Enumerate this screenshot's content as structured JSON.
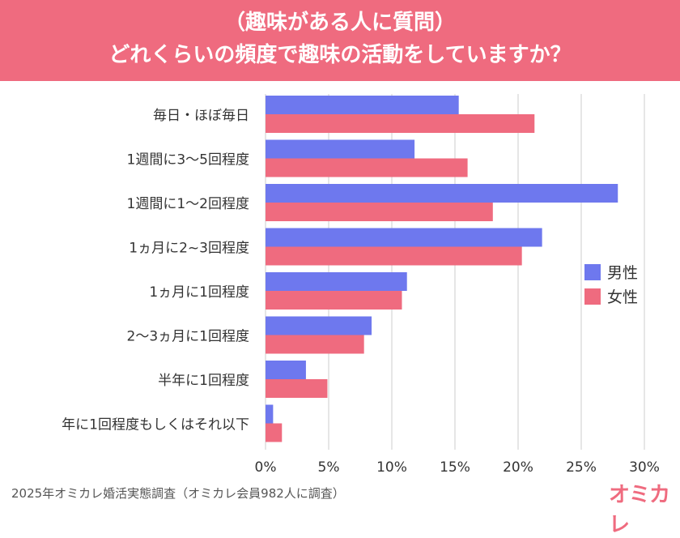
{
  "header": {
    "line1": "（趣味がある人に質問）",
    "line2": "どれくらいの頻度で趣味の活動をしていますか？"
  },
  "footer": {
    "source": "2025年オミカレ婚活実態調査（オミカレ会員982人に調査）",
    "logo": "オミカレ"
  },
  "colors": {
    "header_bg": "#ef6b7f",
    "male": "#6e78ee",
    "female": "#ef6b7f",
    "grid": "#dddddd"
  },
  "chart_data": {
    "type": "bar",
    "orientation": "horizontal",
    "categories": [
      "毎日・ほぼ毎日",
      "1週間に3〜5回程度",
      "1週間に1〜2回程度",
      "1ヵ月に2~3回程度",
      "1ヵ月に1回程度",
      "2〜3ヵ月に1回程度",
      "半年に1回程度",
      "年に1回程度もしくはそれ以下"
    ],
    "series": [
      {
        "name": "男性",
        "color": "#6e78ee",
        "values": [
          15.3,
          11.8,
          27.9,
          21.9,
          11.2,
          8.4,
          3.2,
          0.6
        ]
      },
      {
        "name": "女性",
        "color": "#ef6b7f",
        "values": [
          21.3,
          16.0,
          18.0,
          20.3,
          10.8,
          7.8,
          4.9,
          1.3
        ]
      }
    ],
    "xlim": [
      0,
      30
    ],
    "xticks": [
      "0%",
      "5%",
      "10%",
      "15%",
      "20%",
      "25%",
      "30%"
    ],
    "grid": true,
    "legend_position": "right"
  }
}
